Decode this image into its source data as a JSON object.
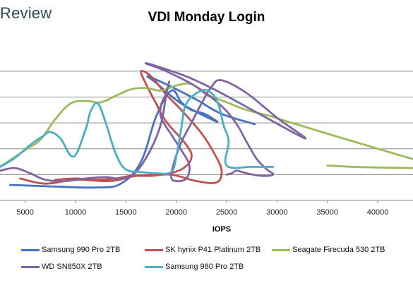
{
  "brand": "Review",
  "chart_data": {
    "type": "line",
    "title": "VDI Monday Login",
    "xlabel": "IOPS",
    "ylabel": "",
    "xlim": [
      2500,
      43500
    ],
    "ylim": [
      0,
      12.4
    ],
    "x_ticks": [
      "5000",
      "10000",
      "15000",
      "20000",
      "25000",
      "30000",
      "35000",
      "40000"
    ],
    "y_gridlines": [
      2,
      4,
      6,
      8,
      10
    ],
    "grid": true,
    "legend_position": "bottom",
    "series": [
      {
        "name": "Samsung 990 Pro 2TB",
        "color": "#4472c4",
        "points": [
          [
            3500,
            1.2
          ],
          [
            7000,
            1.1
          ],
          [
            12000,
            1.0
          ],
          [
            14500,
            1.3
          ],
          [
            16500,
            3.0
          ],
          [
            18000,
            6.5
          ],
          [
            19500,
            8.5
          ],
          [
            20500,
            7.6
          ],
          [
            21500,
            7.0
          ],
          [
            22800,
            6.7
          ],
          [
            24000,
            6.1
          ],
          [
            20500,
            7.5
          ],
          [
            18000,
            9.1
          ],
          [
            17200,
            9.6
          ],
          [
            19500,
            8.8
          ],
          [
            22000,
            7.8
          ],
          [
            24500,
            6.7
          ],
          [
            27800,
            5.9
          ]
        ]
      },
      {
        "name": "SK hynix P41 Platinum 2TB",
        "color": "#c0504d",
        "points": [
          [
            4500,
            1.7
          ],
          [
            7000,
            1.3
          ],
          [
            10000,
            1.6
          ],
          [
            13500,
            1.5
          ],
          [
            16000,
            1.9
          ],
          [
            18500,
            2.0
          ],
          [
            20500,
            2.4
          ],
          [
            21500,
            3.3
          ],
          [
            21000,
            4.3
          ],
          [
            19000,
            6.1
          ],
          [
            18000,
            7.5
          ],
          [
            17000,
            9.0
          ],
          [
            16500,
            10.0
          ],
          [
            17500,
            9.6
          ],
          [
            19000,
            8.2
          ],
          [
            20500,
            7.0
          ],
          [
            22500,
            5.2
          ],
          [
            23800,
            3.6
          ],
          [
            24500,
            2.3
          ],
          [
            24000,
            1.4
          ],
          [
            22000,
            1.5
          ],
          [
            19500,
            2.0
          ],
          [
            17500,
            1.9
          ],
          [
            15500,
            1.9
          ],
          [
            14000,
            1.7
          ],
          [
            12000,
            1.6
          ],
          [
            10000,
            1.7
          ],
          [
            8000,
            1.6
          ]
        ]
      },
      {
        "name": "Seagate Firecuda 530 2TB",
        "color": "#9bbb59",
        "points": [
          [
            2500,
            2.6
          ],
          [
            5000,
            3.9
          ],
          [
            6500,
            4.7
          ],
          [
            8000,
            6.3
          ],
          [
            9500,
            7.5
          ],
          [
            11000,
            7.7
          ],
          [
            12500,
            7.6
          ],
          [
            14000,
            8.1
          ],
          [
            15500,
            8.6
          ],
          [
            17000,
            8.7
          ],
          [
            18500,
            8.5
          ],
          [
            20000,
            8.9
          ],
          [
            21500,
            9.0
          ],
          [
            23000,
            8.2
          ],
          [
            25000,
            7.6
          ],
          [
            27000,
            7.0
          ],
          [
            29000,
            6.6
          ],
          [
            31500,
            6.0
          ],
          [
            34000,
            5.4
          ],
          [
            37000,
            4.7
          ],
          [
            40000,
            4.0
          ],
          [
            43500,
            3.2
          ],
          null,
          [
            35000,
            2.7
          ],
          [
            37500,
            2.6
          ],
          [
            40000,
            2.55
          ],
          [
            43500,
            2.5
          ]
        ]
      },
      {
        "name": "WD SN850X 2TB",
        "color": "#8064a2",
        "points": [
          [
            2500,
            2.3
          ],
          [
            4000,
            2.5
          ],
          [
            5500,
            2.1
          ],
          [
            7000,
            1.6
          ],
          [
            9000,
            1.5
          ],
          [
            11000,
            1.7
          ],
          [
            13000,
            1.8
          ],
          [
            14500,
            1.7
          ],
          [
            16000,
            2.2
          ],
          [
            17500,
            4.0
          ],
          [
            18500,
            6.0
          ],
          [
            19000,
            8.2
          ],
          [
            19300,
            9.2
          ],
          [
            19000,
            8.3
          ],
          [
            18500,
            7.4
          ],
          [
            18500,
            6.4
          ],
          [
            19500,
            5.1
          ],
          [
            20500,
            3.9
          ],
          [
            21300,
            2.7
          ],
          [
            21000,
            1.7
          ],
          [
            20000,
            1.5
          ],
          [
            19500,
            1.8
          ],
          [
            19800,
            3.0
          ],
          [
            20500,
            4.5
          ],
          [
            21500,
            6.0
          ],
          [
            22500,
            7.5
          ],
          [
            23500,
            8.8
          ],
          [
            24500,
            9.3
          ],
          [
            27000,
            8.3
          ],
          [
            30000,
            6.4
          ],
          [
            32800,
            4.8
          ],
          [
            28000,
            6.8
          ],
          [
            24000,
            8.5
          ],
          [
            21000,
            9.6
          ],
          [
            18000,
            10.4
          ],
          [
            17000,
            10.6
          ],
          [
            19000,
            10.0
          ],
          [
            22000,
            8.8
          ],
          [
            24500,
            7.3
          ],
          [
            26000,
            5.9
          ],
          [
            27000,
            4.5
          ],
          [
            28000,
            3.2
          ],
          [
            29000,
            2.4
          ],
          [
            29600,
            2.0
          ],
          [
            28500,
            1.9
          ],
          [
            27000,
            2.1
          ],
          [
            26000,
            2.3
          ],
          [
            25500,
            2.1
          ],
          [
            25000,
            2.0
          ]
        ]
      },
      {
        "name": "Samsung 980 Pro 2TB",
        "color": "#4bacc6",
        "points": [
          [
            2500,
            2.6
          ],
          [
            4000,
            3.3
          ],
          [
            5500,
            4.3
          ],
          [
            6800,
            5.0
          ],
          [
            7500,
            5.3
          ],
          [
            8500,
            4.8
          ],
          [
            9800,
            3.4
          ],
          [
            11000,
            5.5
          ],
          [
            11500,
            6.9
          ],
          [
            12200,
            7.5
          ],
          [
            13000,
            6.0
          ],
          [
            14000,
            3.6
          ],
          [
            15000,
            2.4
          ],
          [
            16500,
            2.2
          ],
          [
            18000,
            2.1
          ],
          [
            19500,
            2.2
          ],
          [
            20000,
            3.4
          ],
          [
            20500,
            5.6
          ],
          [
            21000,
            7.5
          ],
          [
            22500,
            8.5
          ],
          [
            23500,
            8.3
          ],
          [
            24200,
            7.4
          ],
          [
            24700,
            5.8
          ],
          [
            25200,
            4.6
          ],
          [
            25000,
            2.7
          ],
          [
            27500,
            2.6
          ],
          [
            29600,
            2.6
          ]
        ]
      }
    ]
  }
}
